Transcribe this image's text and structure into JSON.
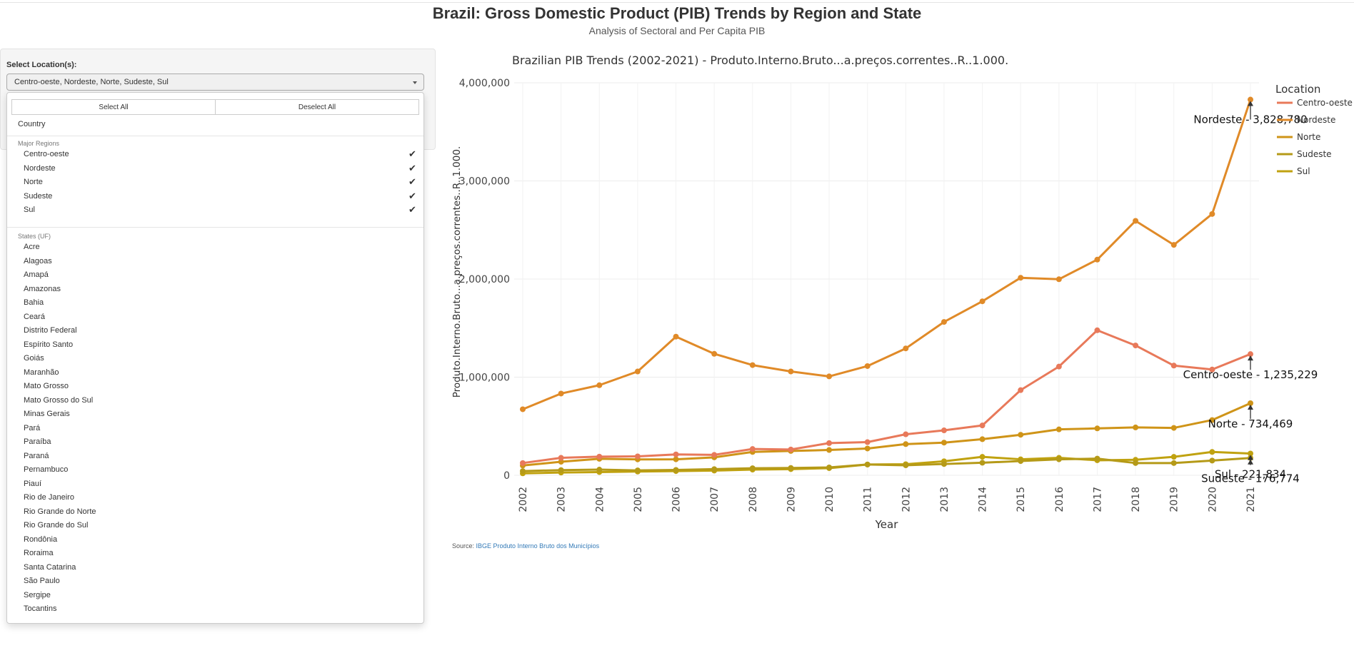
{
  "header": {
    "title": "Brazil: Gross Domestic Product (PIB) Trends by Region and State",
    "subtitle": "Analysis of Sectoral and Per Capita PIB"
  },
  "sidebar": {
    "location_label": "Select Location(s):",
    "selected_value": "Centro-oeste, Nordeste, Norte, Sudeste, Sul",
    "dropdown": {
      "select_all": "Select All",
      "deselect_all": "Deselect All",
      "country_option": "Country",
      "regions_header": "Major Regions",
      "regions": [
        {
          "label": "Centro-oeste",
          "checked": true
        },
        {
          "label": "Nordeste",
          "checked": true
        },
        {
          "label": "Norte",
          "checked": true
        },
        {
          "label": "Sudeste",
          "checked": true
        },
        {
          "label": "Sul",
          "checked": true
        }
      ],
      "states_header": "States (UF)",
      "states": [
        "Acre",
        "Alagoas",
        "Amapá",
        "Amazonas",
        "Bahia",
        "Ceará",
        "Distrito Federal",
        "Espírito Santo",
        "Goiás",
        "Maranhão",
        "Mato Grosso",
        "Mato Grosso do Sul",
        "Minas Gerais",
        "Pará",
        "Paraíba",
        "Paraná",
        "Pernambuco",
        "Piauí",
        "Rio de Janeiro",
        "Rio Grande do Norte",
        "Rio Grande do Sul",
        "Rondônia",
        "Roraima",
        "Santa Catarina",
        "São Paulo",
        "Sergipe",
        "Tocantins"
      ]
    }
  },
  "footer": {
    "source_prefix": "Source: ",
    "source_link": "IBGE Produto Interno Bruto dos Municípios"
  },
  "chart_data": {
    "type": "line",
    "title": "Brazilian PIB Trends (2002-2021) - Produto.Interno.Bruto...a.preços.correntes..R..1.000.",
    "xlabel": "Year",
    "ylabel": "Produto.Interno.Bruto...a.preços.correntes..R..1.000.",
    "ylim": [
      0,
      4000000
    ],
    "yticks": [
      0,
      1000000,
      2000000,
      3000000,
      4000000
    ],
    "ytick_labels": [
      "0",
      "1,000,000",
      "2,000,000",
      "3,000,000",
      "4,000,000"
    ],
    "grid": true,
    "legend_title": "Location",
    "legend_position": "top-right",
    "x": [
      2002,
      2003,
      2004,
      2005,
      2006,
      2007,
      2008,
      2009,
      2010,
      2011,
      2012,
      2013,
      2014,
      2015,
      2016,
      2017,
      2018,
      2019,
      2020,
      2021
    ],
    "series": [
      {
        "name": "Centro-oeste",
        "color": "#e8795a",
        "values": [
          125000,
          178000,
          190000,
          193000,
          213000,
          208000,
          268000,
          263000,
          328000,
          338000,
          418000,
          458000,
          508000,
          868000,
          1108000,
          1478000,
          1323000,
          1118000,
          1078000,
          1235229
        ]
      },
      {
        "name": "Nordeste",
        "color": "#e08a28",
        "values": [
          673000,
          833000,
          918000,
          1058000,
          1413000,
          1238000,
          1123000,
          1058000,
          1008000,
          1113000,
          1293000,
          1563000,
          1773000,
          2013000,
          1998000,
          2198000,
          2593000,
          2348000,
          2663000,
          3828780
        ]
      },
      {
        "name": "Norte",
        "color": "#cf9418",
        "values": [
          100000,
          138000,
          168000,
          162000,
          163000,
          183000,
          238000,
          248000,
          258000,
          273000,
          318000,
          333000,
          368000,
          413000,
          468000,
          478000,
          488000,
          483000,
          563000,
          734469
        ]
      },
      {
        "name": "Sudeste",
        "color": "#b59a18",
        "values": [
          43000,
          53000,
          58000,
          50000,
          55000,
          63000,
          72000,
          75000,
          80000,
          110000,
          102000,
          115000,
          128000,
          145000,
          163000,
          170000,
          125000,
          125000,
          150000,
          176774
        ]
      },
      {
        "name": "Sul",
        "color": "#c0a210",
        "values": [
          20000,
          28000,
          33000,
          38000,
          43000,
          48000,
          58000,
          63000,
          73000,
          110000,
          113000,
          143000,
          188000,
          163000,
          178000,
          153000,
          158000,
          188000,
          238000,
          221834
        ]
      }
    ],
    "annotations": [
      {
        "series": "Nordeste",
        "text": "Nordeste - 3,828,780"
      },
      {
        "series": "Centro-oeste",
        "text": "Centro-oeste - 1,235,229"
      },
      {
        "series": "Norte",
        "text": "Norte - 734,469"
      },
      {
        "series": "Sul",
        "text": "Sul - 221,834"
      },
      {
        "series": "Sudeste",
        "text": "Sudeste - 176,774"
      }
    ]
  }
}
